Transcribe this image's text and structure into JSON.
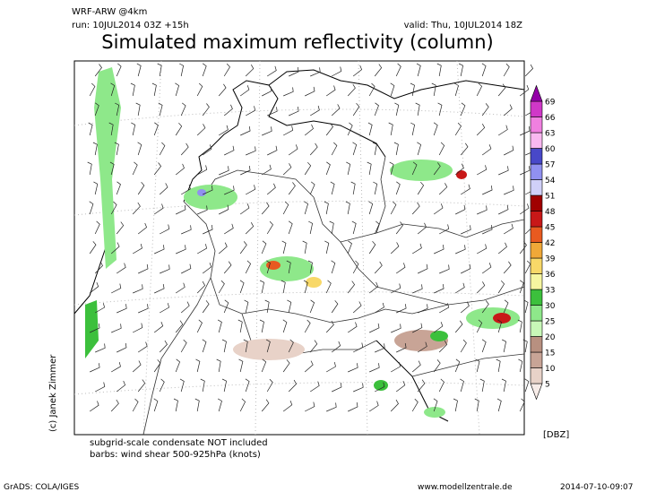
{
  "header": {
    "model": "WRF-ARW @4km",
    "run": "run: 10JUL2014 03Z +15h",
    "valid": "valid: Thu, 10JUL2014 18Z",
    "title": "Simulated maximum reflectivity (column)"
  },
  "colorbar": {
    "unit": "[DBZ]",
    "levels": [
      5,
      10,
      15,
      20,
      25,
      30,
      33,
      36,
      39,
      42,
      45,
      48,
      51,
      54,
      57,
      60,
      63,
      66,
      69
    ],
    "colors": [
      "#f7ece8",
      "#e8d2c8",
      "#c8a496",
      "#b89080",
      "#c8f8b8",
      "#8ee88a",
      "#3cc03c",
      "#f6f6a0",
      "#f8d868",
      "#f0a838",
      "#e85a20",
      "#c81818",
      "#a00000",
      "#d0d0f8",
      "#9090f0",
      "#4848c8",
      "#f8b8f0",
      "#f080e0",
      "#d038c8",
      "#9400a8"
    ]
  },
  "footnotes": [
    "subgrid-scale condensate NOT included",
    "barbs: wind shear 500-925hPa (knots)"
  ],
  "copyright": "(c) Janek Zimmer",
  "footer": {
    "software": "GrADS: COLA/IGES",
    "website": "www.modellzentrale.de",
    "timestamp": "2014-07-10-09:07"
  }
}
